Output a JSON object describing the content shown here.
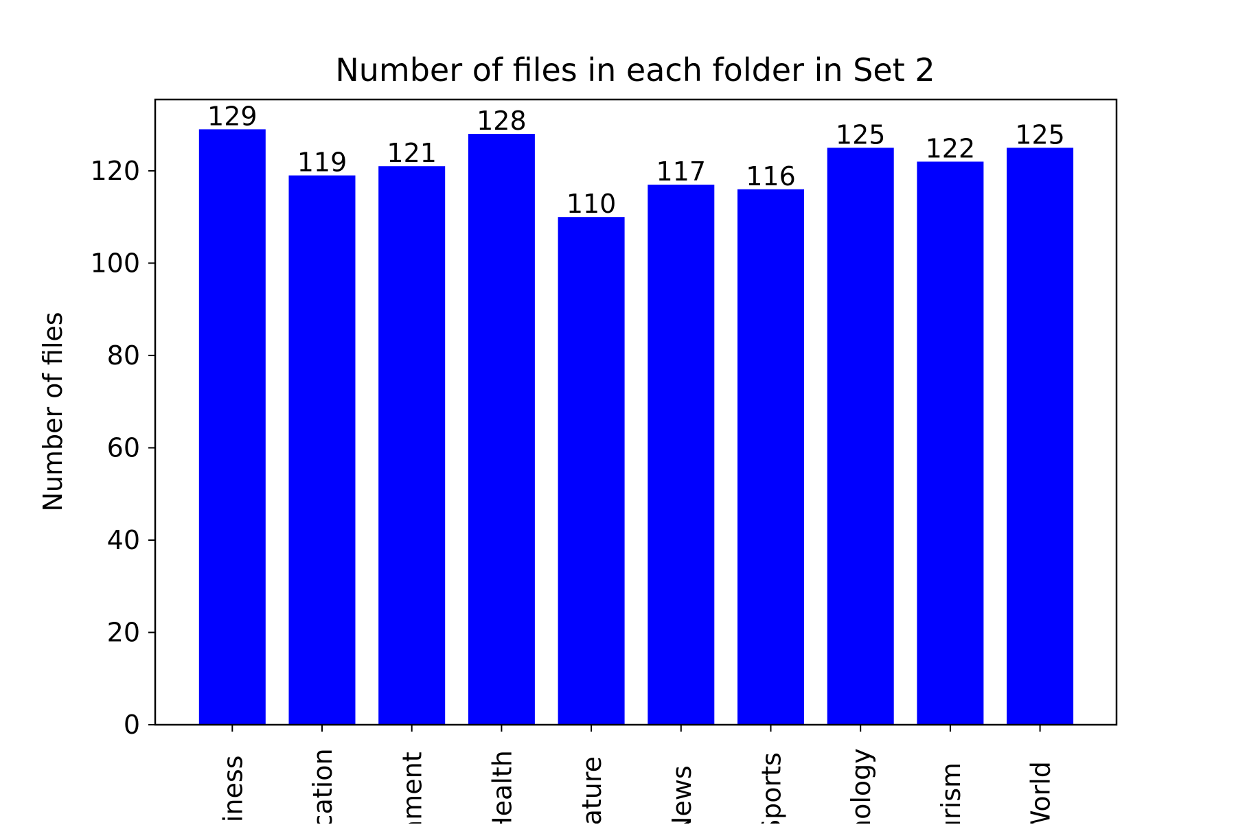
{
  "chart_data": {
    "type": "bar",
    "title": "Number of files in each folder in Set 2",
    "xlabel": "",
    "ylabel": "Number of files",
    "categories": [
      "siness",
      "ication",
      "ament",
      "Health",
      "rature",
      "News",
      "Sports",
      "nology",
      "urism",
      "World"
    ],
    "values": [
      129,
      119,
      121,
      128,
      110,
      117,
      116,
      125,
      122,
      125
    ],
    "ylim": [
      0,
      135.45
    ],
    "yticks": [
      0,
      20,
      40,
      60,
      80,
      100,
      120
    ],
    "bar_color": "#0000ff",
    "grid": false,
    "legend": "none"
  }
}
